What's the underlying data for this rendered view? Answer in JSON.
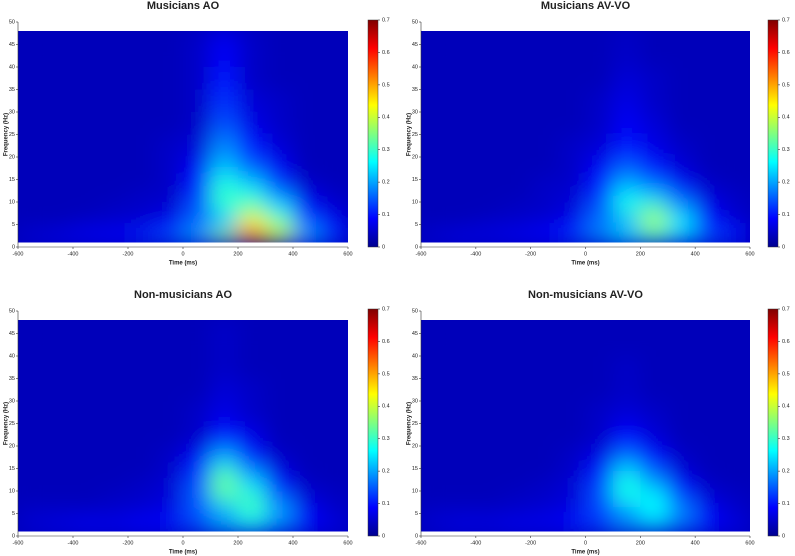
{
  "chart_data": [
    {
      "type": "heatmap",
      "title": "Musicians AO",
      "xlabel": "Time (ms)",
      "ylabel": "Frequency (Hz)",
      "x": [
        -600,
        -500,
        -400,
        -300,
        -200,
        -100,
        0,
        100,
        200,
        300,
        400,
        500,
        600
      ],
      "y": [
        1,
        4,
        7,
        10,
        13,
        16,
        20,
        25,
        30,
        35,
        40,
        48
      ],
      "z": [
        [
          0.06,
          0.07,
          0.08,
          0.09,
          0.11,
          0.14,
          0.2,
          0.35,
          0.55,
          0.4,
          0.2,
          0.12
        ],
        [
          0.04,
          0.04,
          0.05,
          0.05,
          0.06,
          0.08,
          0.15,
          0.2,
          0.45,
          0.35,
          0.15,
          0.08
        ],
        [
          0.04,
          0.04,
          0.04,
          0.05,
          0.05,
          0.06,
          0.15,
          0.28,
          0.35,
          0.25,
          0.1,
          0.06
        ],
        [
          0.04,
          0.04,
          0.04,
          0.04,
          0.05,
          0.05,
          0.12,
          0.3,
          0.28,
          0.18,
          0.07,
          0.05
        ],
        [
          0.04,
          0.04,
          0.04,
          0.04,
          0.04,
          0.05,
          0.1,
          0.28,
          0.22,
          0.12,
          0.05,
          0.04
        ],
        [
          0.04,
          0.04,
          0.04,
          0.04,
          0.04,
          0.05,
          0.08,
          0.22,
          0.15,
          0.08,
          0.04,
          0.04
        ],
        [
          0.04,
          0.04,
          0.04,
          0.04,
          0.04,
          0.05,
          0.06,
          0.18,
          0.1,
          0.06,
          0.04,
          0.04
        ],
        [
          0.04,
          0.04,
          0.04,
          0.04,
          0.04,
          0.04,
          0.05,
          0.14,
          0.07,
          0.05,
          0.04,
          0.04
        ],
        [
          0.04,
          0.04,
          0.04,
          0.04,
          0.04,
          0.04,
          0.05,
          0.12,
          0.06,
          0.05,
          0.04,
          0.04
        ],
        [
          0.04,
          0.04,
          0.04,
          0.04,
          0.04,
          0.04,
          0.05,
          0.1,
          0.05,
          0.04,
          0.04,
          0.04
        ],
        [
          0.04,
          0.04,
          0.04,
          0.04,
          0.04,
          0.04,
          0.05,
          0.08,
          0.05,
          0.04,
          0.04,
          0.04
        ]
      ],
      "xlim": [
        -600,
        600
      ],
      "ylim": [
        0,
        50
      ],
      "xticks": [
        -600,
        -400,
        -200,
        0,
        200,
        400,
        600
      ],
      "yticks": [
        0,
        5,
        10,
        15,
        20,
        25,
        30,
        35,
        40,
        45,
        50
      ],
      "clim": [
        0,
        0.7
      ],
      "cticks": [
        0,
        0.1,
        0.2,
        0.3,
        0.4,
        0.5,
        0.6,
        0.7
      ]
    },
    {
      "type": "heatmap",
      "title": "Musicians AV-VO",
      "xlabel": "Time (ms)",
      "ylabel": "Frequency (Hz)",
      "x": [
        -600,
        -500,
        -400,
        -300,
        -200,
        -100,
        0,
        100,
        200,
        300,
        400,
        500,
        600
      ],
      "y": [
        1,
        4,
        7,
        10,
        13,
        16,
        20,
        25,
        30,
        35,
        40,
        48
      ],
      "z": [
        [
          0.06,
          0.07,
          0.07,
          0.08,
          0.09,
          0.12,
          0.18,
          0.25,
          0.3,
          0.22,
          0.14,
          0.1
        ],
        [
          0.04,
          0.04,
          0.05,
          0.05,
          0.06,
          0.08,
          0.16,
          0.18,
          0.38,
          0.25,
          0.1,
          0.06
        ],
        [
          0.04,
          0.04,
          0.04,
          0.05,
          0.05,
          0.06,
          0.15,
          0.28,
          0.32,
          0.2,
          0.08,
          0.05
        ],
        [
          0.04,
          0.04,
          0.04,
          0.04,
          0.05,
          0.06,
          0.12,
          0.25,
          0.22,
          0.14,
          0.06,
          0.05
        ],
        [
          0.04,
          0.04,
          0.04,
          0.04,
          0.05,
          0.05,
          0.1,
          0.2,
          0.15,
          0.08,
          0.05,
          0.04
        ],
        [
          0.04,
          0.04,
          0.04,
          0.04,
          0.04,
          0.05,
          0.08,
          0.15,
          0.1,
          0.06,
          0.04,
          0.04
        ],
        [
          0.04,
          0.04,
          0.04,
          0.04,
          0.04,
          0.05,
          0.06,
          0.1,
          0.07,
          0.05,
          0.04,
          0.04
        ],
        [
          0.04,
          0.04,
          0.04,
          0.04,
          0.04,
          0.04,
          0.05,
          0.08,
          0.06,
          0.04,
          0.04,
          0.04
        ],
        [
          0.04,
          0.04,
          0.04,
          0.04,
          0.04,
          0.04,
          0.05,
          0.07,
          0.05,
          0.04,
          0.04,
          0.04
        ],
        [
          0.04,
          0.04,
          0.04,
          0.04,
          0.04,
          0.04,
          0.04,
          0.06,
          0.05,
          0.04,
          0.04,
          0.04
        ],
        [
          0.04,
          0.04,
          0.04,
          0.04,
          0.04,
          0.04,
          0.04,
          0.05,
          0.04,
          0.04,
          0.04,
          0.04
        ]
      ],
      "xlim": [
        -600,
        600
      ],
      "ylim": [
        0,
        50
      ],
      "xticks": [
        -600,
        -400,
        -200,
        0,
        200,
        400,
        600
      ],
      "yticks": [
        0,
        5,
        10,
        15,
        20,
        25,
        30,
        35,
        40,
        45,
        50
      ],
      "clim": [
        0,
        0.7
      ],
      "cticks": [
        0,
        0.1,
        0.2,
        0.3,
        0.4,
        0.5,
        0.6,
        0.7
      ]
    },
    {
      "type": "heatmap",
      "title": "Non-musicians AO",
      "xlabel": "Time (ms)",
      "ylabel": "Frequency (Hz)",
      "x": [
        -600,
        -500,
        -400,
        -300,
        -200,
        -100,
        0,
        100,
        200,
        300,
        400,
        500,
        600
      ],
      "y": [
        1,
        4,
        7,
        10,
        13,
        16,
        20,
        25,
        30,
        35,
        40,
        48
      ],
      "z": [
        [
          0.06,
          0.07,
          0.08,
          0.08,
          0.09,
          0.1,
          0.14,
          0.22,
          0.25,
          0.18,
          0.1,
          0.07
        ],
        [
          0.05,
          0.05,
          0.05,
          0.05,
          0.06,
          0.07,
          0.14,
          0.18,
          0.3,
          0.2,
          0.08,
          0.05
        ],
        [
          0.04,
          0.04,
          0.04,
          0.05,
          0.05,
          0.06,
          0.15,
          0.3,
          0.3,
          0.16,
          0.06,
          0.05
        ],
        [
          0.04,
          0.04,
          0.04,
          0.04,
          0.05,
          0.06,
          0.14,
          0.34,
          0.24,
          0.1,
          0.05,
          0.04
        ],
        [
          0.04,
          0.04,
          0.04,
          0.04,
          0.04,
          0.05,
          0.12,
          0.3,
          0.18,
          0.07,
          0.04,
          0.04
        ],
        [
          0.04,
          0.04,
          0.04,
          0.04,
          0.04,
          0.05,
          0.08,
          0.2,
          0.1,
          0.05,
          0.04,
          0.04
        ],
        [
          0.04,
          0.04,
          0.04,
          0.04,
          0.04,
          0.04,
          0.05,
          0.1,
          0.07,
          0.04,
          0.04,
          0.04
        ],
        [
          0.04,
          0.04,
          0.04,
          0.04,
          0.04,
          0.04,
          0.05,
          0.07,
          0.05,
          0.04,
          0.04,
          0.04
        ],
        [
          0.04,
          0.04,
          0.04,
          0.04,
          0.04,
          0.04,
          0.04,
          0.06,
          0.05,
          0.04,
          0.04,
          0.04
        ],
        [
          0.04,
          0.04,
          0.04,
          0.04,
          0.04,
          0.04,
          0.04,
          0.05,
          0.04,
          0.04,
          0.04,
          0.04
        ],
        [
          0.04,
          0.04,
          0.04,
          0.04,
          0.04,
          0.04,
          0.04,
          0.05,
          0.04,
          0.04,
          0.04,
          0.04
        ]
      ],
      "xlim": [
        -600,
        600
      ],
      "ylim": [
        0,
        50
      ],
      "xticks": [
        -600,
        -400,
        -200,
        0,
        200,
        400,
        600
      ],
      "yticks": [
        0,
        5,
        10,
        15,
        20,
        25,
        30,
        35,
        40,
        45,
        50
      ],
      "clim": [
        0,
        0.7
      ],
      "cticks": [
        0,
        0.1,
        0.2,
        0.3,
        0.4,
        0.5,
        0.6,
        0.7
      ]
    },
    {
      "type": "heatmap",
      "title": "Non-musicians AV-VO",
      "xlabel": "Time (ms)",
      "ylabel": "Frequency (Hz)",
      "x": [
        -600,
        -500,
        -400,
        -300,
        -200,
        -100,
        0,
        100,
        200,
        300,
        400,
        500,
        600
      ],
      "y": [
        1,
        4,
        7,
        10,
        13,
        16,
        20,
        25,
        30,
        35,
        40,
        48
      ],
      "z": [
        [
          0.06,
          0.07,
          0.07,
          0.08,
          0.08,
          0.1,
          0.13,
          0.2,
          0.22,
          0.16,
          0.1,
          0.07
        ],
        [
          0.05,
          0.05,
          0.05,
          0.05,
          0.06,
          0.07,
          0.13,
          0.16,
          0.26,
          0.18,
          0.08,
          0.05
        ],
        [
          0.04,
          0.04,
          0.04,
          0.05,
          0.05,
          0.06,
          0.14,
          0.27,
          0.26,
          0.14,
          0.06,
          0.05
        ],
        [
          0.04,
          0.04,
          0.04,
          0.04,
          0.05,
          0.06,
          0.13,
          0.28,
          0.2,
          0.09,
          0.05,
          0.04
        ],
        [
          0.04,
          0.04,
          0.04,
          0.04,
          0.04,
          0.05,
          0.1,
          0.24,
          0.15,
          0.06,
          0.04,
          0.04
        ],
        [
          0.04,
          0.04,
          0.04,
          0.04,
          0.04,
          0.05,
          0.07,
          0.16,
          0.09,
          0.05,
          0.04,
          0.04
        ],
        [
          0.04,
          0.04,
          0.04,
          0.04,
          0.04,
          0.04,
          0.05,
          0.09,
          0.06,
          0.04,
          0.04,
          0.04
        ],
        [
          0.04,
          0.04,
          0.04,
          0.04,
          0.04,
          0.04,
          0.05,
          0.06,
          0.05,
          0.04,
          0.04,
          0.04
        ],
        [
          0.04,
          0.04,
          0.04,
          0.04,
          0.04,
          0.04,
          0.04,
          0.05,
          0.04,
          0.04,
          0.04,
          0.04
        ],
        [
          0.04,
          0.04,
          0.04,
          0.04,
          0.04,
          0.04,
          0.04,
          0.05,
          0.04,
          0.04,
          0.04,
          0.04
        ],
        [
          0.04,
          0.04,
          0.04,
          0.04,
          0.04,
          0.04,
          0.04,
          0.04,
          0.04,
          0.04,
          0.04,
          0.04
        ]
      ],
      "xlim": [
        -600,
        600
      ],
      "ylim": [
        0,
        50
      ],
      "xticks": [
        -600,
        -400,
        -200,
        0,
        200,
        400,
        600
      ],
      "yticks": [
        0,
        5,
        10,
        15,
        20,
        25,
        30,
        35,
        40,
        45,
        50
      ],
      "clim": [
        0,
        0.7
      ],
      "cticks": [
        0,
        0.1,
        0.2,
        0.3,
        0.4,
        0.5,
        0.6,
        0.7
      ]
    }
  ]
}
